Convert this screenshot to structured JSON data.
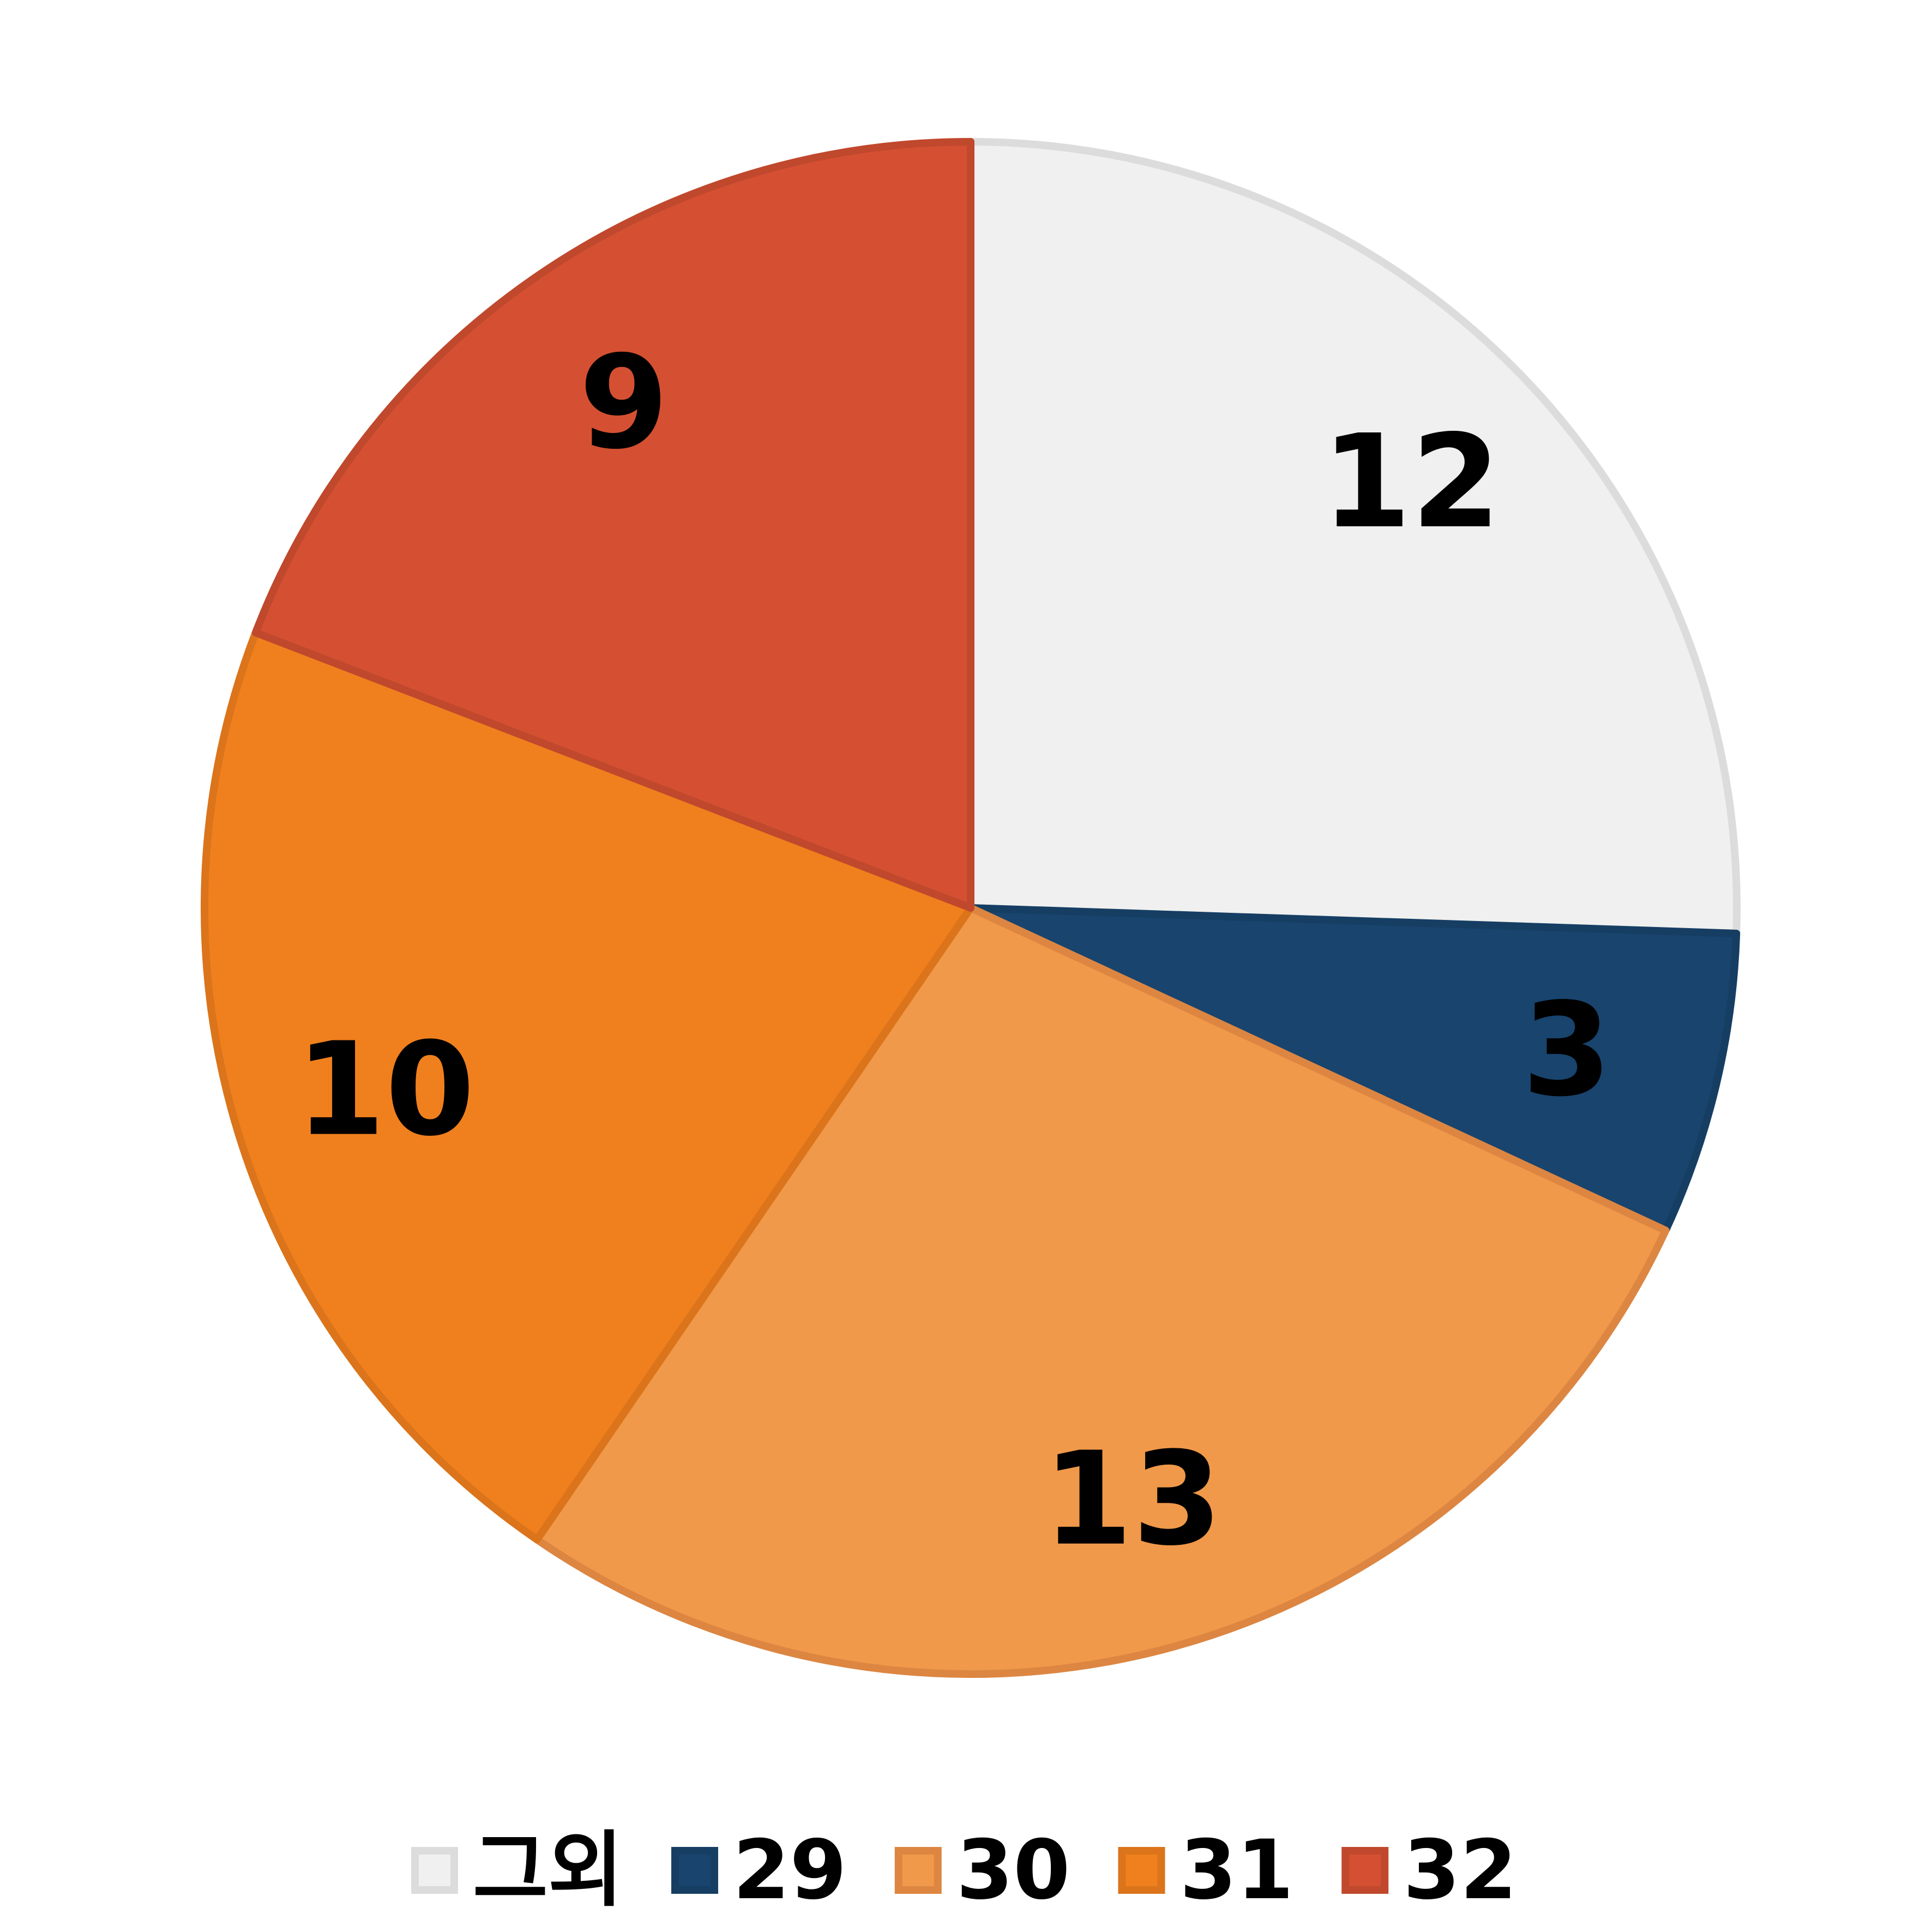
{
  "chart_data": {
    "type": "pie",
    "title": "",
    "legend_position": "bottom",
    "slices": [
      {
        "label": "그외",
        "value": 12,
        "color": "#f0f0f0",
        "stroke": "#dcdcdc"
      },
      {
        "label": "29",
        "value": 3,
        "color": "#18446e",
        "stroke": "#163e63"
      },
      {
        "label": "30",
        "value": 13,
        "color": "#f0994a",
        "stroke": "#dc8642"
      },
      {
        "label": "31",
        "value": 10,
        "color": "#f0801d",
        "stroke": "#db741a"
      },
      {
        "label": "32",
        "value": 9,
        "color": "#d55032",
        "stroke": "#c0482d"
      }
    ]
  }
}
